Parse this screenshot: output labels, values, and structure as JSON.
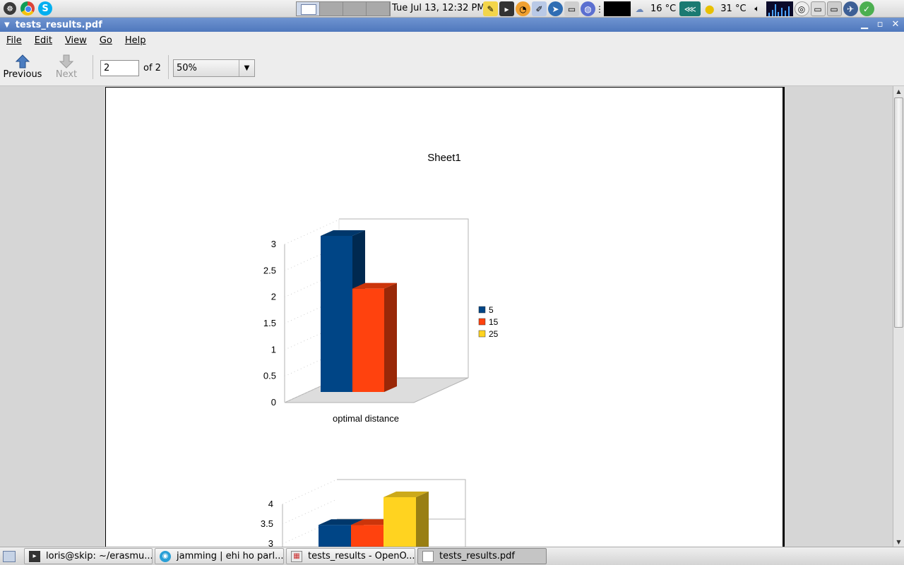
{
  "top_panel": {
    "clock": "Tue Jul 13, 12:32 PM",
    "weather1": "16 °C",
    "weather2": "31 °C",
    "launchers": [
      "gnome-foot-icon",
      "chrome-icon",
      "skype-icon"
    ],
    "tray_icons": [
      "notes-icon",
      "terminal-icon",
      "clock-icon",
      "editor-icon",
      "browser-icon",
      "monitor-icon",
      "network-icon",
      "cloud-icon",
      "fish-icon",
      "sun-icon",
      "volume-icon",
      "disk-icon",
      "drive-icon",
      "drive2-icon",
      "thunderbird-icon",
      "chat-icon"
    ]
  },
  "window": {
    "title": "tests_results.pdf"
  },
  "menu": [
    "File",
    "Edit",
    "View",
    "Go",
    "Help"
  ],
  "toolbar": {
    "previous_label": "Previous",
    "next_label": "Next",
    "page_value": "2",
    "page_of": "of 2",
    "zoom_value": "50%"
  },
  "colors": {
    "series_5": "#004586",
    "series_15": "#ff420e",
    "series_25": "#ffd320",
    "title_bar": "#5a82c4"
  },
  "chart_data": [
    {
      "type": "bar",
      "title": "Sheet1",
      "categories": [
        "optimal distance"
      ],
      "series": [
        {
          "name": "5",
          "values": [
            3
          ]
        },
        {
          "name": "15",
          "values": [
            2
          ]
        },
        {
          "name": "25",
          "values": [
            0
          ]
        }
      ],
      "yticks": [
        "3",
        "2.5",
        "2",
        "1.5",
        "1",
        "0.5",
        "0"
      ],
      "ylim": [
        0,
        3
      ],
      "legend": [
        "5",
        "15",
        "25"
      ],
      "legend_position": "right"
    },
    {
      "type": "bar",
      "title": "",
      "categories": [
        ""
      ],
      "series": [
        {
          "name": "5",
          "values": [
            3.3
          ]
        },
        {
          "name": "15",
          "values": [
            3.3
          ]
        },
        {
          "name": "25",
          "values": [
            4
          ]
        }
      ],
      "yticks": [
        "4",
        "3.5",
        "3"
      ],
      "partial": true
    }
  ],
  "taskbar": {
    "tasks": [
      {
        "label": "loris@skip: ~/erasmu...",
        "icon": "terminal-icon"
      },
      {
        "label": "jamming | ehi ho parl...",
        "icon": "browser-icon"
      },
      {
        "label": "tests_results - OpenO...",
        "icon": "spreadsheet-icon"
      },
      {
        "label": "tests_results.pdf",
        "icon": "pdf-icon"
      }
    ]
  }
}
